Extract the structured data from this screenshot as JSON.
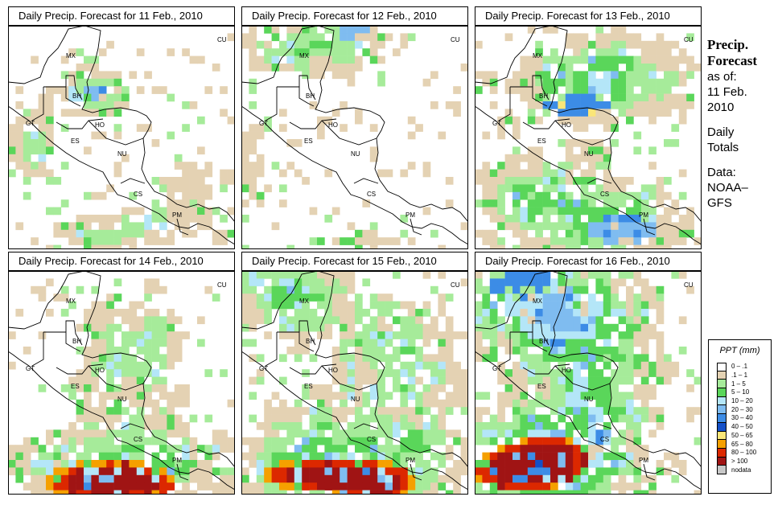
{
  "panels": [
    {
      "title": "Daily Precip. Forecast for  11 Feb., 2010",
      "scenario": 0
    },
    {
      "title": "Daily Precip. Forecast for  12 Feb., 2010",
      "scenario": 1
    },
    {
      "title": "Daily Precip. Forecast for  13 Feb., 2010",
      "scenario": 2
    },
    {
      "title": "Daily Precip. Forecast for  14 Feb., 2010",
      "scenario": 3
    },
    {
      "title": "Daily Precip. Forecast for  15 Feb., 2010",
      "scenario": 4
    },
    {
      "title": "Daily Precip. Forecast for  16 Feb., 2010",
      "scenario": 5
    }
  ],
  "map_labels": [
    "MX",
    "BH",
    "GT",
    "HO",
    "ES",
    "NU",
    "CS",
    "PM",
    "CU"
  ],
  "side": {
    "title_line1": "Precip.",
    "title_line2": "Forecast",
    "asof": "as of:",
    "date_line1": "11 Feb.",
    "date_line2": "2010",
    "daily_line1": "Daily",
    "daily_line2": "Totals",
    "data_line1": "Data:",
    "data_line2": "NOAA–",
    "data_line3": "GFS"
  },
  "legend": {
    "title": "PPT (mm)",
    "items": [
      {
        "label": "0 – .1",
        "color": "#ffffff"
      },
      {
        "label": ".1 – 1",
        "color": "#e4d2b3"
      },
      {
        "label": "1 – 5",
        "color": "#a6eb9a"
      },
      {
        "label": "5 – 10",
        "color": "#5ad65a"
      },
      {
        "label": "10 – 20",
        "color": "#b4e6f8"
      },
      {
        "label": "20 – 30",
        "color": "#7fbcf0"
      },
      {
        "label": "30 – 40",
        "color": "#3c8ce6"
      },
      {
        "label": "40 – 50",
        "color": "#1450c8"
      },
      {
        "label": "50 – 65",
        "color": "#fae678"
      },
      {
        "label": "65 – 80",
        "color": "#f5a000"
      },
      {
        "label": "80 – 100",
        "color": "#dc2800"
      },
      {
        "label": "> 100",
        "color": "#a01414"
      },
      {
        "label": "nodata",
        "color": "#c8c8c8"
      }
    ]
  }
}
